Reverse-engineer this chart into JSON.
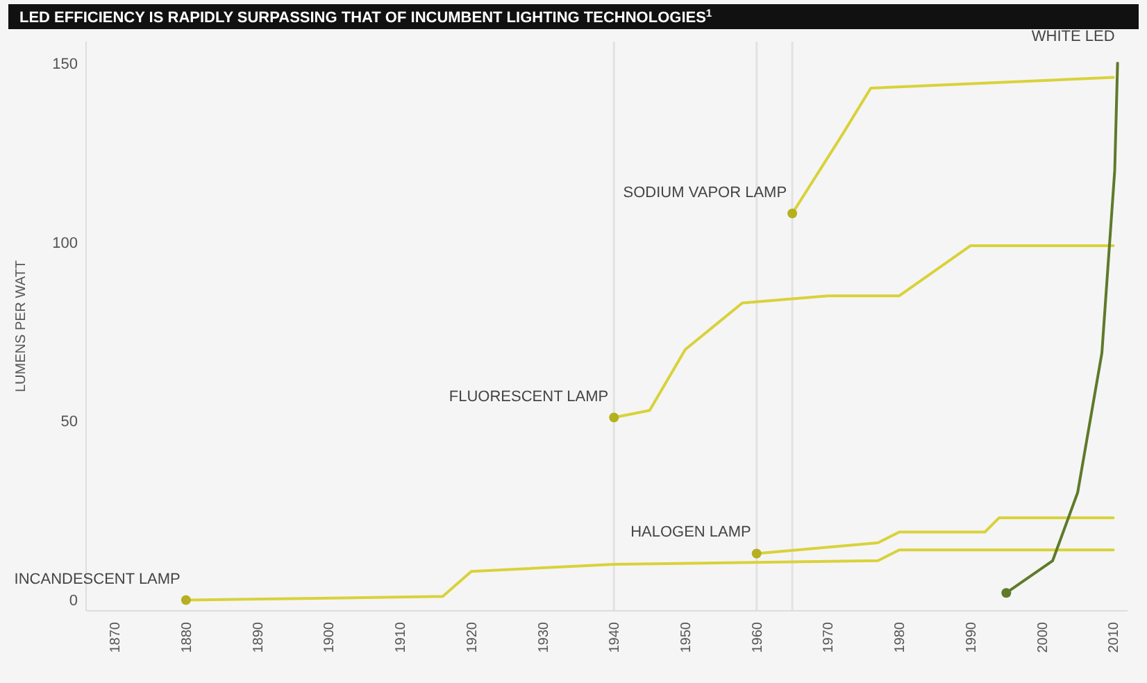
{
  "chart_data": {
    "type": "line",
    "title": "LED EFFICIENCY IS RAPIDLY SURPASSING THAT OF INCUMBENT LIGHTING TECHNOLOGIES$^{1}$",
    "ylabel": "LUMENS PER WATT",
    "xlim": [
      1866,
      2012
    ],
    "xticks": [
      1870,
      1880,
      1890,
      1900,
      1910,
      1920,
      1930,
      1940,
      1950,
      1960,
      1970,
      1980,
      1990,
      2000,
      2010
    ],
    "ylim": [
      -3,
      156
    ],
    "yticks": [
      0,
      50,
      100,
      150
    ],
    "series": [
      {
        "name": "INCANDESCENT LAMP",
        "color": "#d8d23a",
        "x": [
          1880,
          1916,
          1920,
          1940,
          1977,
          1980,
          2010
        ],
        "values": [
          0,
          1,
          8,
          10,
          11,
          14,
          14
        ]
      },
      {
        "name": "FLUORESCENT LAMP",
        "color": "#d8d23a",
        "x": [
          1940,
          1945,
          1950,
          1958,
          1970,
          1980,
          1990,
          2010
        ],
        "values": [
          51,
          53,
          70,
          83,
          85,
          85,
          99,
          99
        ]
      },
      {
        "name": "HALOGEN LAMP",
        "color": "#d8d23a",
        "x": [
          1960,
          1977,
          1980,
          1992,
          1994,
          2010
        ],
        "values": [
          13,
          16,
          19,
          19,
          23,
          23
        ]
      },
      {
        "name": "SODIUM VAPOR LAMP",
        "color": "#d8d23a",
        "x": [
          1965,
          1972,
          1976,
          2010
        ],
        "values": [
          108,
          130,
          143,
          146
        ]
      },
      {
        "name": "WHITE LED",
        "color": "#5f7a2a",
        "x": [
          1995,
          2001.5,
          2005,
          2008.4,
          2010.2,
          2010.6
        ],
        "values": [
          2,
          11,
          30,
          69,
          120,
          150
        ]
      }
    ],
    "ref_lines": [
      {
        "axis": "x",
        "value": 1940,
        "color": "#e2e2e2"
      },
      {
        "axis": "x",
        "value": 1960,
        "color": "#e2e2e2"
      },
      {
        "axis": "x",
        "value": 1965,
        "color": "#e2e2e2"
      }
    ]
  }
}
